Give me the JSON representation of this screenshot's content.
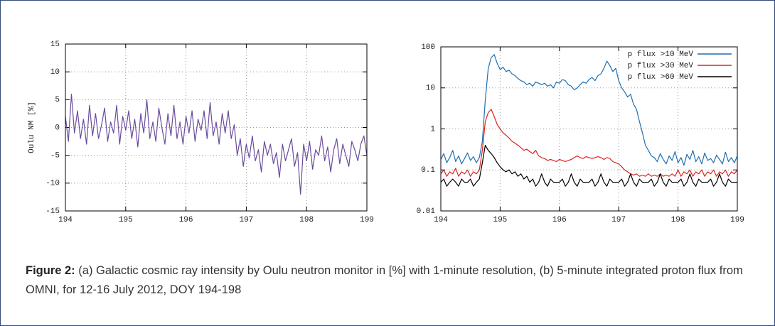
{
  "chart_data": [
    {
      "type": "line",
      "ylabel": "Oulu NM [%]",
      "color": "#6a4c9c",
      "grid": true,
      "xlim": [
        194,
        199
      ],
      "xticks": [
        194,
        195,
        196,
        197,
        198,
        199
      ],
      "ylim": [
        -15,
        15
      ],
      "yticks": [
        -15,
        -10,
        -5,
        0,
        5,
        10,
        15
      ],
      "x": [
        194,
        194.05,
        194.1,
        194.15,
        194.2,
        194.25,
        194.3,
        194.35,
        194.4,
        194.45,
        194.5,
        194.55,
        194.6,
        194.65,
        194.7,
        194.75,
        194.8,
        194.85,
        194.9,
        194.95,
        195,
        195.05,
        195.1,
        195.15,
        195.2,
        195.25,
        195.3,
        195.35,
        195.4,
        195.45,
        195.5,
        195.55,
        195.6,
        195.65,
        195.7,
        195.75,
        195.8,
        195.85,
        195.9,
        195.95,
        196,
        196.05,
        196.1,
        196.15,
        196.2,
        196.25,
        196.3,
        196.35,
        196.4,
        196.45,
        196.5,
        196.55,
        196.6,
        196.65,
        196.7,
        196.75,
        196.8,
        196.85,
        196.9,
        196.95,
        197,
        197.05,
        197.1,
        197.15,
        197.2,
        197.25,
        197.3,
        197.35,
        197.4,
        197.45,
        197.5,
        197.55,
        197.6,
        197.65,
        197.7,
        197.75,
        197.8,
        197.85,
        197.9,
        197.95,
        198,
        198.05,
        198.1,
        198.15,
        198.2,
        198.25,
        198.3,
        198.35,
        198.4,
        198.45,
        198.5,
        198.55,
        198.6,
        198.65,
        198.7,
        198.75,
        198.8,
        198.85,
        198.9,
        198.95,
        199
      ],
      "values": [
        2,
        -2.5,
        6,
        -1,
        3,
        -2,
        1.5,
        -3,
        4,
        -1.5,
        2.5,
        -2,
        0.5,
        3.5,
        -2.5,
        1,
        -1,
        4,
        -3,
        2,
        -0.5,
        3,
        -2,
        1.5,
        -3.5,
        2.5,
        -1,
        5,
        -2,
        1,
        -2.5,
        3.5,
        0,
        -3,
        2.5,
        -1.5,
        4,
        -2,
        1,
        -3,
        2,
        -1,
        3,
        -2.5,
        1.5,
        -0.5,
        3,
        -2,
        4.5,
        -1.5,
        1,
        -3,
        2.5,
        -1,
        3,
        -2,
        0.5,
        -5,
        -2,
        -7,
        -3,
        -5.5,
        -1.5,
        -6,
        -4,
        -8,
        -2.5,
        -5,
        -3,
        -6.5,
        -4.5,
        -9,
        -3,
        -6,
        -4,
        -2,
        -7,
        -4.5,
        -12,
        -3,
        -6,
        -2.5,
        -7.5,
        -4,
        -5,
        -1.5,
        -6,
        -3.5,
        -8,
        -4,
        -2,
        -6.5,
        -3,
        -5,
        -7,
        -2.5,
        -4,
        -6,
        -3,
        -1.5,
        -5
      ]
    },
    {
      "type": "line",
      "yscale": "log",
      "grid": true,
      "legend": "upper right",
      "xlim": [
        194,
        199
      ],
      "xticks": [
        194,
        195,
        196,
        197,
        198,
        199
      ],
      "ylim": [
        0.01,
        100
      ],
      "yticks": [
        0.01,
        0.1,
        1,
        10,
        100
      ],
      "x": [
        194,
        194.05,
        194.1,
        194.15,
        194.2,
        194.25,
        194.3,
        194.35,
        194.4,
        194.45,
        194.5,
        194.55,
        194.6,
        194.65,
        194.7,
        194.75,
        194.8,
        194.85,
        194.9,
        194.95,
        195,
        195.05,
        195.1,
        195.15,
        195.2,
        195.25,
        195.3,
        195.35,
        195.4,
        195.45,
        195.5,
        195.55,
        195.6,
        195.65,
        195.7,
        195.75,
        195.8,
        195.85,
        195.9,
        195.95,
        196,
        196.05,
        196.1,
        196.15,
        196.2,
        196.25,
        196.3,
        196.35,
        196.4,
        196.45,
        196.5,
        196.55,
        196.6,
        196.65,
        196.7,
        196.75,
        196.8,
        196.85,
        196.9,
        196.95,
        197,
        197.05,
        197.1,
        197.15,
        197.2,
        197.25,
        197.3,
        197.35,
        197.4,
        197.45,
        197.5,
        197.55,
        197.6,
        197.65,
        197.7,
        197.75,
        197.8,
        197.85,
        197.9,
        197.95,
        198,
        198.05,
        198.1,
        198.15,
        198.2,
        198.25,
        198.3,
        198.35,
        198.4,
        198.45,
        198.5,
        198.55,
        198.6,
        198.65,
        198.7,
        198.75,
        198.8,
        198.85,
        198.9,
        198.95,
        199
      ],
      "series": [
        {
          "name": "p flux >10 MeV",
          "color": "#1f6fb2",
          "values": [
            0.18,
            0.25,
            0.15,
            0.2,
            0.3,
            0.16,
            0.22,
            0.14,
            0.19,
            0.26,
            0.17,
            0.21,
            0.15,
            0.2,
            0.5,
            5,
            30,
            55,
            65,
            40,
            28,
            32,
            25,
            27,
            22,
            20,
            17,
            15,
            14,
            12,
            13,
            11,
            14,
            13,
            12,
            13,
            11,
            12,
            10,
            14,
            13,
            16,
            15,
            12,
            11,
            9,
            10,
            12,
            14,
            13,
            16,
            18,
            15,
            20,
            22,
            30,
            45,
            35,
            25,
            30,
            15,
            10,
            8,
            6,
            7,
            4,
            3,
            1.5,
            0.8,
            0.4,
            0.3,
            0.22,
            0.2,
            0.16,
            0.25,
            0.18,
            0.14,
            0.22,
            0.17,
            0.28,
            0.15,
            0.2,
            0.13,
            0.24,
            0.18,
            0.3,
            0.16,
            0.21,
            0.14,
            0.26,
            0.17,
            0.19,
            0.15,
            0.23,
            0.18,
            0.14,
            0.27,
            0.16,
            0.2,
            0.15,
            0.22
          ]
        },
        {
          "name": "p flux >30 MeV",
          "color": "#e0201c",
          "values": [
            0.08,
            0.1,
            0.07,
            0.09,
            0.08,
            0.11,
            0.07,
            0.09,
            0.08,
            0.1,
            0.07,
            0.09,
            0.08,
            0.1,
            0.3,
            1.5,
            2.5,
            3,
            2,
            1.3,
            1,
            0.8,
            0.7,
            0.6,
            0.5,
            0.45,
            0.4,
            0.35,
            0.3,
            0.32,
            0.28,
            0.25,
            0.3,
            0.22,
            0.2,
            0.19,
            0.17,
            0.18,
            0.17,
            0.16,
            0.18,
            0.17,
            0.16,
            0.17,
            0.18,
            0.2,
            0.22,
            0.2,
            0.19,
            0.21,
            0.2,
            0.19,
            0.2,
            0.21,
            0.2,
            0.18,
            0.2,
            0.19,
            0.16,
            0.15,
            0.14,
            0.12,
            0.1,
            0.09,
            0.08,
            0.075,
            0.08,
            0.07,
            0.075,
            0.07,
            0.08,
            0.07,
            0.075,
            0.07,
            0.08,
            0.07,
            0.075,
            0.07,
            0.08,
            0.07,
            0.1,
            0.07,
            0.09,
            0.08,
            0.1,
            0.07,
            0.09,
            0.08,
            0.1,
            0.07,
            0.09,
            0.08,
            0.1,
            0.07,
            0.09,
            0.08,
            0.1,
            0.07,
            0.09,
            0.08,
            0.1
          ]
        },
        {
          "name": "p flux >60 MeV",
          "color": "#000000",
          "values": [
            0.05,
            0.06,
            0.04,
            0.05,
            0.06,
            0.05,
            0.04,
            0.06,
            0.05,
            0.05,
            0.06,
            0.04,
            0.05,
            0.06,
            0.15,
            0.4,
            0.3,
            0.25,
            0.2,
            0.15,
            0.12,
            0.1,
            0.09,
            0.1,
            0.08,
            0.09,
            0.07,
            0.08,
            0.06,
            0.07,
            0.05,
            0.06,
            0.04,
            0.05,
            0.08,
            0.05,
            0.04,
            0.06,
            0.05,
            0.05,
            0.05,
            0.06,
            0.04,
            0.05,
            0.08,
            0.05,
            0.04,
            0.06,
            0.05,
            0.05,
            0.05,
            0.06,
            0.04,
            0.05,
            0.08,
            0.05,
            0.04,
            0.06,
            0.05,
            0.05,
            0.05,
            0.06,
            0.04,
            0.05,
            0.08,
            0.05,
            0.04,
            0.06,
            0.05,
            0.05,
            0.05,
            0.06,
            0.04,
            0.05,
            0.08,
            0.05,
            0.04,
            0.06,
            0.05,
            0.05,
            0.05,
            0.06,
            0.04,
            0.05,
            0.08,
            0.05,
            0.04,
            0.06,
            0.05,
            0.05,
            0.05,
            0.06,
            0.04,
            0.05,
            0.08,
            0.05,
            0.04,
            0.06,
            0.05,
            0.05,
            0.05
          ]
        }
      ]
    }
  ],
  "caption": {
    "label": "Figure 2:",
    "text": "(a) Galactic cosmic ray intensity by Oulu neutron monitor in [%] with 1-minute resolution, (b) 5-minute integrated proton flux from OMNI, for 12-16 July 2012, DOY 194-198"
  }
}
